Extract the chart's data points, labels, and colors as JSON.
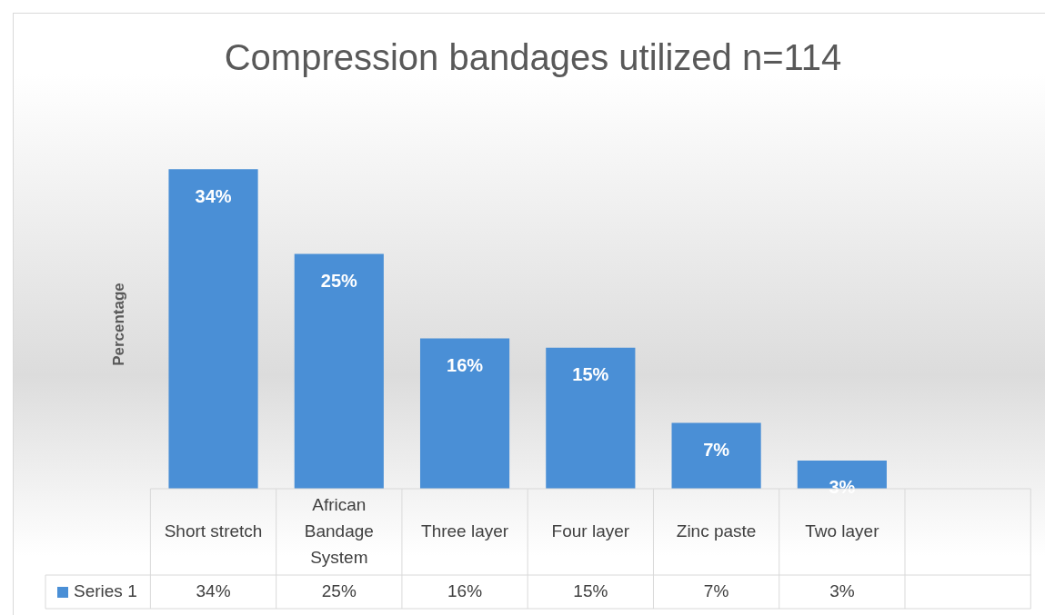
{
  "chart_data": {
    "type": "bar",
    "title": "Compression bandages utilized n=114",
    "ylabel": "Percentage",
    "categories": [
      "Short stretch",
      "African Bandage System",
      "Three layer",
      "Four layer",
      "Zinc paste",
      "Two layer"
    ],
    "series": [
      {
        "name": "Series 1",
        "color": "#4a8fd6",
        "values": [
          34,
          25,
          16,
          15,
          7,
          3
        ],
        "value_labels": [
          "34%",
          "25%",
          "16%",
          "15%",
          "7%",
          "3%"
        ]
      }
    ],
    "legend": "bottom"
  }
}
